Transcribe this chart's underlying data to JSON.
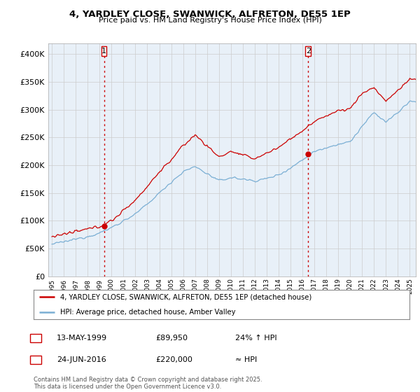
{
  "title1": "4, YARDLEY CLOSE, SWANWICK, ALFRETON, DE55 1EP",
  "title2": "Price paid vs. HM Land Registry's House Price Index (HPI)",
  "ylim": [
    0,
    420000
  ],
  "yticks": [
    0,
    50000,
    100000,
    150000,
    200000,
    250000,
    300000,
    350000,
    400000
  ],
  "ytick_labels": [
    "£0",
    "£50K",
    "£100K",
    "£150K",
    "£200K",
    "£250K",
    "£300K",
    "£350K",
    "£400K"
  ],
  "xlim_start": 1995.0,
  "xlim_end": 2025.5,
  "sale1_date": 1999.37,
  "sale1_price": 89950,
  "sale2_date": 2016.48,
  "sale2_price": 220000,
  "red_color": "#cc0000",
  "blue_color": "#7bafd4",
  "fill_color": "#ddeeff",
  "annotation_color": "#cc0000",
  "grid_color": "#cccccc",
  "background_color": "#ffffff",
  "chart_bg_color": "#e8f0f8",
  "legend_label_red": "4, YARDLEY CLOSE, SWANWICK, ALFRETON, DE55 1EP (detached house)",
  "legend_label_blue": "HPI: Average price, detached house, Amber Valley",
  "footnote": "Contains HM Land Registry data © Crown copyright and database right 2025.\nThis data is licensed under the Open Government Licence v3.0.",
  "sale_info": [
    {
      "num": "1",
      "date": "13-MAY-1999",
      "price": "£89,950",
      "hpi": "24% ↑ HPI"
    },
    {
      "num": "2",
      "date": "24-JUN-2016",
      "price": "£220,000",
      "hpi": "≈ HPI"
    }
  ],
  "hpi_anchors_x": [
    1995,
    1996,
    1997,
    1998,
    1999,
    2000,
    2001,
    2002,
    2003,
    2004,
    2005,
    2006,
    2007,
    2008,
    2009,
    2010,
    2011,
    2012,
    2013,
    2014,
    2015,
    2016,
    2017,
    2018,
    2019,
    2020,
    2021,
    2022,
    2023,
    2024,
    2025
  ],
  "hpi_anchors_y": [
    58000,
    62000,
    67000,
    72000,
    78000,
    88000,
    100000,
    112000,
    130000,
    150000,
    170000,
    188000,
    198000,
    185000,
    172000,
    178000,
    175000,
    172000,
    176000,
    183000,
    195000,
    210000,
    225000,
    232000,
    238000,
    242000,
    270000,
    295000,
    278000,
    295000,
    315000
  ],
  "red_anchors_x": [
    1995,
    1996,
    1997,
    1998,
    1999,
    2000,
    2001,
    2002,
    2003,
    2004,
    2005,
    2006,
    2007,
    2008,
    2009,
    2010,
    2011,
    2012,
    2013,
    2014,
    2015,
    2016,
    2017,
    2018,
    2019,
    2020,
    2021,
    2022,
    2023,
    2024,
    2025
  ],
  "red_anchors_y": [
    72000,
    76000,
    80000,
    85000,
    90000,
    100000,
    118000,
    138000,
    162000,
    188000,
    210000,
    235000,
    255000,
    235000,
    215000,
    225000,
    218000,
    212000,
    222000,
    232000,
    248000,
    262000,
    278000,
    290000,
    298000,
    302000,
    330000,
    340000,
    315000,
    335000,
    355000
  ]
}
